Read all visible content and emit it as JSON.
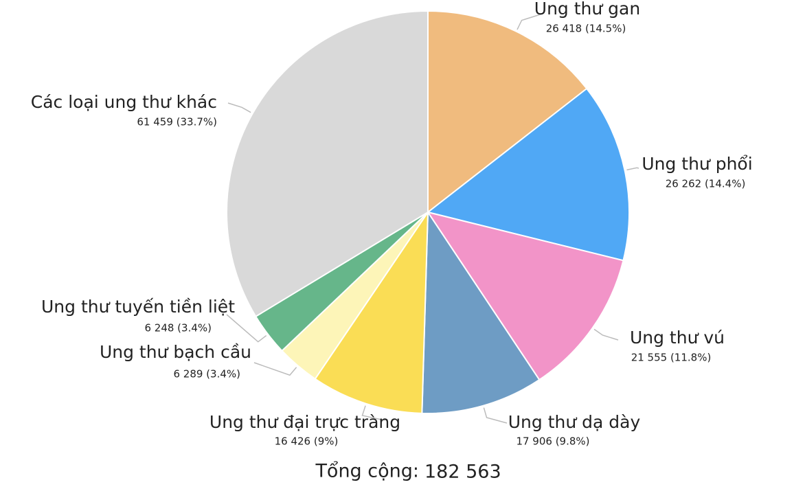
{
  "chart_data": {
    "type": "pie",
    "categories": [
      "Ung thư gan",
      "Ung thư phổi",
      "Ung thư vú",
      "Ung thư dạ dày",
      "Ung thư đại trực tràng",
      "Ung thư bạch cầu",
      "Ung thư tuyến tiền liệt",
      "Các loại ung thư khác"
    ],
    "values": [
      26418,
      26262,
      21555,
      17906,
      16426,
      6289,
      6248,
      61459
    ],
    "value_labels": [
      "26 418 (14.5%)",
      "26 262 (14.4%)",
      "21 555 (11.8%)",
      "17 906 (9.8%)",
      "16 426 (9%)",
      "6 289 (3.4%)",
      "6 248 (3.4%)",
      "61 459 (33.7%)"
    ],
    "colors": [
      "#f0bb7e",
      "#50a8f5",
      "#f294c8",
      "#6e9cc4",
      "#fadd55",
      "#fdf5b8",
      "#66b68a",
      "#d9d9d9"
    ],
    "total_label": "Tổng cộng:",
    "total": {
      "value": 182563,
      "label": "182 563"
    }
  }
}
